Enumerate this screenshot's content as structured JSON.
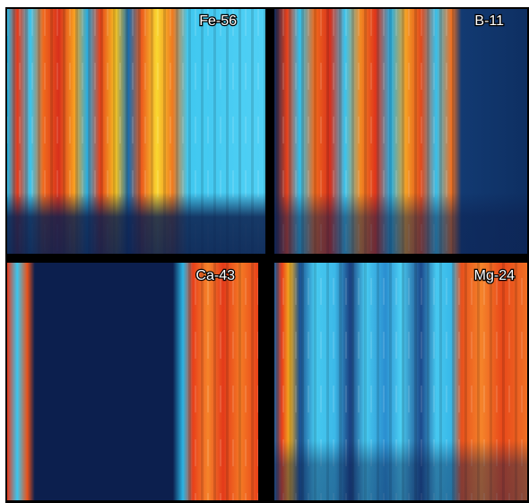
{
  "panels": [
    {
      "label": "Fe-56"
    },
    {
      "label": "B-11"
    },
    {
      "label": "Ca-43"
    },
    {
      "label": "Mg-24"
    }
  ]
}
